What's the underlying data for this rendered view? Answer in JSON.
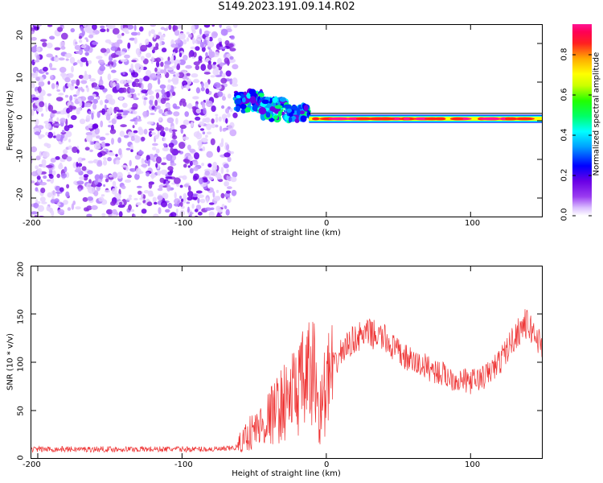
{
  "title": "S149.2023.191.09.14.R02",
  "chart_data": [
    {
      "type": "heatmap",
      "xlabel": "Height of straight line (km)",
      "ylabel": "Frequency (Hz)",
      "xlim": [
        -205,
        150
      ],
      "ylim": [
        -25,
        25
      ],
      "xticks": [
        -200,
        -100,
        0,
        100
      ],
      "yticks": [
        -20,
        -10,
        0,
        10,
        20
      ],
      "grid": false,
      "colorbar": {
        "label": "Normalized spectral amplitude",
        "range": [
          0.0,
          0.95
        ],
        "ticks": [
          "0.0",
          "0.2",
          "0.4",
          "0.6",
          "0.8"
        ],
        "colormap": [
          "#ffffff",
          "#dcc2ff",
          "#9a3cf0",
          "#6a00e6",
          "#0000ff",
          "#00a0ff",
          "#00ffff",
          "#00ff66",
          "#22ff00",
          "#ccff00",
          "#ffff00",
          "#ffaa00",
          "#ff2020",
          "#ff0055",
          "#ff1493"
        ]
      },
      "regions": [
        {
          "x_range": [
            -205,
            -63
          ],
          "freq_range": [
            -25,
            25
          ],
          "amplitude": 0.05
        },
        {
          "x_range": [
            -63,
            -45
          ],
          "freq_center": 5,
          "freq_halfwidth": 2.5,
          "amplitude": 0.3
        },
        {
          "x_range": [
            -45,
            -28
          ],
          "freq_center": 3,
          "freq_halfwidth": 2.5,
          "amplitude": 0.3
        },
        {
          "x_range": [
            -28,
            -12
          ],
          "freq_center": 2,
          "freq_halfwidth": 2,
          "amplitude": 0.3
        },
        {
          "x_range": [
            -12,
            150
          ],
          "freq_center": 0.5,
          "freq_halfwidth": 1,
          "amplitude": 0.85
        }
      ]
    },
    {
      "type": "line",
      "xlabel": "Height of straight line (km)",
      "ylabel": "SNR (10 * v/v)",
      "xlim": [
        -205,
        150
      ],
      "ylim": [
        0,
        200
      ],
      "xticks": [
        -200,
        -100,
        0,
        100
      ],
      "yticks": [
        0,
        50,
        100,
        150,
        200
      ],
      "grid": false,
      "series": [
        {
          "color": "#ee3333",
          "x": [
            -205,
            -180,
            -150,
            -120,
            -90,
            -70,
            -62,
            -55,
            -45,
            -35,
            -25,
            -15,
            -8,
            -5,
            0,
            10,
            20,
            30,
            40,
            50,
            60,
            70,
            80,
            90,
            100,
            110,
            120,
            130,
            137,
            140,
            145,
            150
          ],
          "y": [
            10,
            10,
            10,
            10,
            10,
            10,
            12,
            25,
            35,
            50,
            65,
            80,
            90,
            45,
            75,
            110,
            125,
            130,
            125,
            110,
            100,
            95,
            88,
            82,
            80,
            85,
            100,
            125,
            140,
            138,
            128,
            115
          ]
        }
      ]
    }
  ]
}
